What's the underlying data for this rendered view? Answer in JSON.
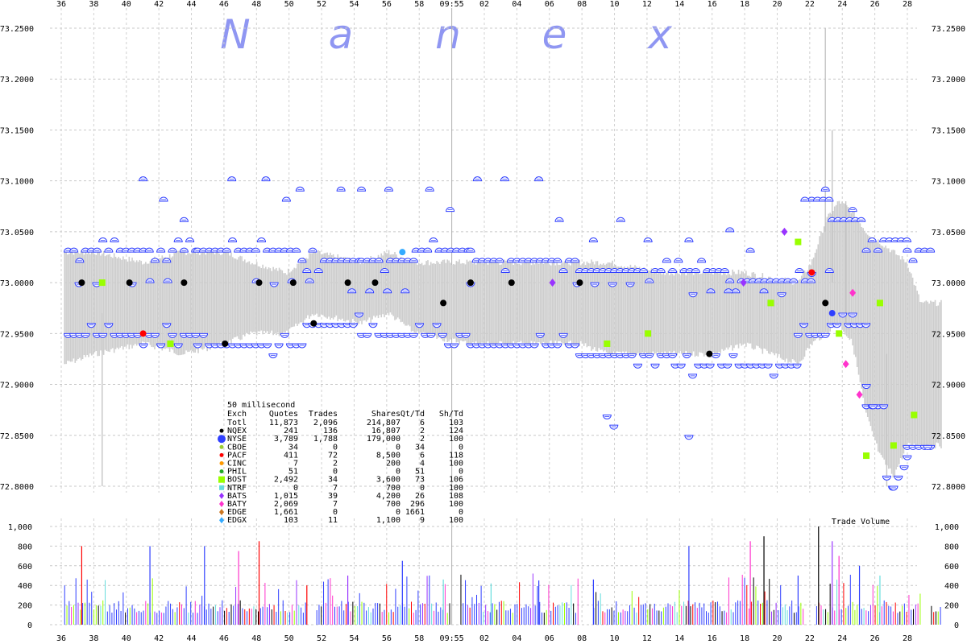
{
  "chart_data": {
    "type": "scatter",
    "watermark": [
      "N",
      "a",
      "n",
      "e",
      "x"
    ],
    "price_axis": {
      "ylim": [
        72.8,
        73.25
      ],
      "ticks": [
        "73.2500",
        "73.2000",
        "73.1500",
        "73.1000",
        "73.0500",
        "73.0000",
        "72.9500",
        "72.9000",
        "72.8500",
        "72.8000"
      ]
    },
    "volume_axis": {
      "title": "Trade Volume",
      "ylim": [
        0,
        1000
      ],
      "ticks": [
        "1,000",
        "800",
        "600",
        "400",
        "200",
        "0"
      ]
    },
    "x_axis": {
      "ticks": [
        "36",
        "38",
        "40",
        "42",
        "44",
        "46",
        "48",
        "50",
        "52",
        "54",
        "56",
        "58",
        "09:55",
        "02",
        "04",
        "06",
        "08",
        "10",
        "12",
        "14",
        "16",
        "18",
        "20",
        "22",
        "24",
        "26",
        "28"
      ],
      "highlight": "09:55"
    },
    "price_band": [
      [
        0.5,
        72.92,
        73.03
      ],
      [
        5,
        72.93,
        73.03
      ],
      [
        12,
        72.94,
        73.02
      ],
      [
        18,
        72.93,
        73.03
      ],
      [
        24,
        72.94,
        73.03
      ],
      [
        28,
        72.95,
        73.02
      ],
      [
        33,
        72.95,
        73.01
      ],
      [
        37,
        72.97,
        73.03
      ],
      [
        44,
        72.96,
        73.02
      ],
      [
        48,
        72.97,
        73.03
      ],
      [
        52,
        72.95,
        73.02
      ],
      [
        60,
        72.94,
        73.02
      ],
      [
        68,
        72.94,
        73.02
      ],
      [
        76,
        72.94,
        73.02
      ],
      [
        80,
        72.93,
        73.02
      ],
      [
        88,
        72.93,
        73.01
      ],
      [
        96,
        72.93,
        73.01
      ],
      [
        100,
        72.94,
        73.01
      ],
      [
        108,
        72.92,
        73.0
      ],
      [
        110,
        72.94,
        73.02
      ],
      [
        112,
        72.95,
        73.06
      ],
      [
        114,
        72.96,
        73.08
      ],
      [
        116,
        72.94,
        73.07
      ],
      [
        118,
        72.87,
        73.05
      ],
      [
        120,
        72.83,
        73.04
      ],
      [
        122,
        72.81,
        73.03
      ],
      [
        124,
        72.84,
        73.02
      ],
      [
        126,
        72.84,
        72.98
      ],
      [
        128,
        72.84,
        72.98
      ],
      [
        129,
        72.84,
        72.98
      ]
    ],
    "exchanges_table": {
      "title": "50 millisecond",
      "columns": [
        "Exch",
        "Quotes",
        "Trades",
        "Shares",
        "Qt/Td",
        "Sh/Td"
      ],
      "rows": [
        {
          "exch": "Totl",
          "quotes": "11,873",
          "trades": "2,096",
          "shares": "214,807",
          "qt_td": "6",
          "sh_td": "103",
          "color": ""
        },
        {
          "exch": "NQEX",
          "quotes": "241",
          "trades": "136",
          "shares": "16,807",
          "qt_td": "2",
          "sh_td": "124",
          "color": "#000000"
        },
        {
          "exch": "NYSE",
          "quotes": "3,789",
          "trades": "1,788",
          "shares": "179,000",
          "qt_td": "2",
          "sh_td": "100",
          "color": "#2f3fff"
        },
        {
          "exch": "CBOE",
          "quotes": "34",
          "trades": "0",
          "shares": "0",
          "qt_td": "34",
          "sh_td": "0",
          "color": "#9acd32"
        },
        {
          "exch": "PACF",
          "quotes": "411",
          "trades": "72",
          "shares": "8,500",
          "qt_td": "6",
          "sh_td": "118",
          "color": "#ff0000"
        },
        {
          "exch": "CINC",
          "quotes": "7",
          "trades": "2",
          "shares": "200",
          "qt_td": "4",
          "sh_td": "100",
          "color": "#ff9900"
        },
        {
          "exch": "PHIL",
          "quotes": "51",
          "trades": "0",
          "shares": "0",
          "qt_td": "51",
          "sh_td": "0",
          "color": "#22aa22"
        },
        {
          "exch": "BOST",
          "quotes": "2,492",
          "trades": "34",
          "shares": "3,600",
          "qt_td": "73",
          "sh_td": "106",
          "color": "#99ff00"
        },
        {
          "exch": "NTRF",
          "quotes": "0",
          "trades": "7",
          "shares": "700",
          "qt_td": "0",
          "sh_td": "100",
          "color": "#66dddd"
        },
        {
          "exch": "BATS",
          "quotes": "1,015",
          "trades": "39",
          "shares": "4,200",
          "qt_td": "26",
          "sh_td": "108",
          "color": "#9933ff"
        },
        {
          "exch": "BATY",
          "quotes": "2,069",
          "trades": "7",
          "shares": "700",
          "qt_td": "296",
          "sh_td": "100",
          "color": "#ff33cc"
        },
        {
          "exch": "EDGE",
          "quotes": "1,661",
          "trades": "0",
          "shares": "0",
          "qt_td": "1661",
          "sh_td": "0",
          "color": "#cc7722"
        },
        {
          "exch": "EDGX",
          "quotes": "103",
          "trades": "11",
          "shares": "1,100",
          "qt_td": "9",
          "sh_td": "100",
          "color": "#33aaff"
        }
      ]
    },
    "quote_series": {
      "ask_levels": [
        [
          1,
          20,
          73.03
        ],
        [
          20,
          36,
          73.03
        ],
        [
          36,
          44,
          73.02
        ],
        [
          44,
          52,
          73.02
        ],
        [
          52,
          60,
          73.03
        ],
        [
          60,
          76,
          73.02
        ],
        [
          76,
          98,
          73.01
        ],
        [
          98,
          110,
          73.0
        ],
        [
          110,
          113,
          73.08
        ],
        [
          113,
          118,
          73.06
        ],
        [
          118,
          124,
          73.04
        ],
        [
          124,
          128,
          73.03
        ]
      ],
      "bid_levels": [
        [
          1,
          20,
          72.95
        ],
        [
          20,
          36,
          72.94
        ],
        [
          36,
          44,
          72.96
        ],
        [
          44,
          60,
          72.95
        ],
        [
          60,
          76,
          72.94
        ],
        [
          76,
          90,
          72.93
        ],
        [
          90,
          108,
          72.92
        ],
        [
          108,
          112,
          72.95
        ],
        [
          112,
          118,
          72.96
        ],
        [
          118,
          121,
          72.88
        ],
        [
          121,
          124,
          72.81
        ],
        [
          124,
          128,
          72.84
        ]
      ],
      "mid_levels": [
        [
          0,
          40,
          73.0
        ],
        [
          40,
          60,
          72.99
        ],
        [
          60,
          90,
          73.0
        ],
        [
          90,
          110,
          72.99
        ],
        [
          110,
          120,
          73.01
        ]
      ],
      "outliers": [
        [
          12,
          73.1
        ],
        [
          15,
          73.08
        ],
        [
          18,
          73.06
        ],
        [
          25,
          73.1
        ],
        [
          30,
          73.1
        ],
        [
          33,
          73.08
        ],
        [
          35,
          73.09
        ],
        [
          41,
          73.09
        ],
        [
          44,
          73.09
        ],
        [
          48,
          73.09
        ],
        [
          54,
          73.09
        ],
        [
          57,
          73.07
        ],
        [
          61,
          73.1
        ],
        [
          65,
          73.1
        ],
        [
          70,
          73.1
        ],
        [
          73,
          73.06
        ],
        [
          78,
          73.04
        ],
        [
          82,
          73.06
        ],
        [
          86,
          73.04
        ],
        [
          92,
          73.04
        ],
        [
          98,
          73.05
        ],
        [
          101,
          73.03
        ],
        [
          109,
          73.08
        ],
        [
          112,
          73.09
        ],
        [
          116,
          73.07
        ],
        [
          80,
          72.87
        ],
        [
          81,
          72.86
        ],
        [
          92,
          72.85
        ],
        [
          116,
          72.97
        ],
        [
          118,
          72.9
        ],
        [
          119,
          72.88
        ],
        [
          122,
          72.8
        ],
        [
          124,
          72.83
        ],
        [
          127,
          72.84
        ]
      ],
      "trade_marks": [
        [
          3,
          73.0,
          "#000000"
        ],
        [
          6,
          73.0,
          "#99ff00"
        ],
        [
          10,
          73.0,
          "#000000"
        ],
        [
          12,
          72.95,
          "#ff0000"
        ],
        [
          16,
          72.94,
          "#99ff00"
        ],
        [
          18,
          73.0,
          "#000000"
        ],
        [
          24,
          72.94,
          "#000000"
        ],
        [
          29,
          73.0,
          "#000000"
        ],
        [
          34,
          73.0,
          "#000000"
        ],
        [
          37,
          72.96,
          "#000000"
        ],
        [
          42,
          73.0,
          "#000000"
        ],
        [
          46,
          73.0,
          "#000000"
        ],
        [
          50,
          73.03,
          "#33aaff"
        ],
        [
          56,
          72.98,
          "#000000"
        ],
        [
          60,
          73.0,
          "#000000"
        ],
        [
          66,
          73.0,
          "#000000"
        ],
        [
          72,
          73.0,
          "#9933ff"
        ],
        [
          76,
          73.0,
          "#000000"
        ],
        [
          80,
          72.94,
          "#99ff00"
        ],
        [
          86,
          72.95,
          "#99ff00"
        ],
        [
          95,
          72.93,
          "#000000"
        ],
        [
          100,
          73.0,
          "#9933ff"
        ],
        [
          104,
          72.98,
          "#99ff00"
        ],
        [
          106,
          73.05,
          "#9933ff"
        ],
        [
          108,
          73.04,
          "#99ff00"
        ],
        [
          110,
          73.01,
          "#ff0000"
        ],
        [
          112,
          72.98,
          "#000000"
        ],
        [
          113,
          72.97,
          "#2f3fff"
        ],
        [
          114,
          72.95,
          "#99ff00"
        ],
        [
          115,
          72.92,
          "#ff33cc"
        ],
        [
          116,
          72.99,
          "#ff33cc"
        ],
        [
          117,
          72.89,
          "#ff33cc"
        ],
        [
          118,
          72.83,
          "#99ff00"
        ],
        [
          120,
          72.98,
          "#99ff00"
        ],
        [
          122,
          72.84,
          "#99ff00"
        ],
        [
          125,
          72.87,
          "#99ff00"
        ]
      ]
    },
    "volume_bars": {
      "colors": [
        "#2f3fff",
        "#2f3fff",
        "#2f3fff",
        "#2f3fff",
        "#2f3fff",
        "#000000",
        "#ff0000",
        "#99ff00",
        "#66dddd",
        "#9933ff",
        "#ff33cc"
      ],
      "spikes": [
        [
          3,
          800
        ],
        [
          13,
          800
        ],
        [
          21,
          800
        ],
        [
          26,
          750
        ],
        [
          29,
          850
        ],
        [
          36,
          400
        ],
        [
          42,
          500
        ],
        [
          50,
          650
        ],
        [
          56,
          460
        ],
        [
          63,
          420
        ],
        [
          70,
          450
        ],
        [
          78,
          460
        ],
        [
          92,
          800
        ],
        [
          101,
          850
        ],
        [
          103,
          900
        ],
        [
          108,
          500
        ],
        [
          111,
          1000
        ],
        [
          113,
          850
        ],
        [
          114,
          700
        ],
        [
          117,
          600
        ],
        [
          120,
          500
        ]
      ]
    }
  }
}
